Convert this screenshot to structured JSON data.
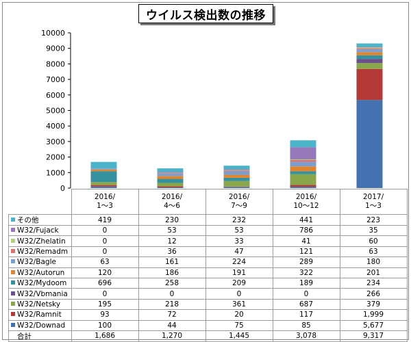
{
  "title": "ウイルス検出数の推移",
  "colors": {
    "W32/Downad": "#4472b0",
    "W32/Ramnit": "#b33a37",
    "W32/Netsky": "#89a64a",
    "W32/Vbmania": "#6c4f8c",
    "W32/Mydoom": "#34929e",
    "W32/Autorun": "#e0852f",
    "W32/Bagle": "#7a9fd0",
    "W32/Remadm": "#d7726f",
    "W32/Zhelatin": "#b2cc80",
    "W32/Fujack": "#9579b8",
    "その他": "#4bb4c9"
  },
  "chart_data": {
    "type": "bar",
    "stacked": true,
    "title": "ウイルス検出数の推移",
    "categories": [
      "2016/\n1～3",
      "2016/\n4～6",
      "2016/\n7～9",
      "2016/\n10～12",
      "2017/\n1～3"
    ],
    "category_lines": [
      [
        "2016/",
        "1～3"
      ],
      [
        "2016/",
        "4～6"
      ],
      [
        "2016/",
        "7～9"
      ],
      [
        "2016/",
        "10～12"
      ],
      [
        "2017/",
        "1～3"
      ]
    ],
    "yticks": [
      "0",
      "1000",
      "2000",
      "3000",
      "4000",
      "5000",
      "6000",
      "7000",
      "8000",
      "9000",
      "10000"
    ],
    "ylim": [
      0,
      10000
    ],
    "series": [
      {
        "name": "W32/Downad",
        "values": [
          100,
          44,
          75,
          85,
          5677
        ],
        "labels": [
          "100",
          "44",
          "75",
          "85",
          "5,677"
        ]
      },
      {
        "name": "W32/Ramnit",
        "values": [
          93,
          72,
          20,
          117,
          1999
        ],
        "labels": [
          "93",
          "72",
          "20",
          "117",
          "1,999"
        ]
      },
      {
        "name": "W32/Netsky",
        "values": [
          195,
          218,
          361,
          687,
          379
        ],
        "labels": [
          "195",
          "218",
          "361",
          "687",
          "379"
        ]
      },
      {
        "name": "W32/Vbmania",
        "values": [
          0,
          0,
          0,
          0,
          266
        ],
        "labels": [
          "0",
          "0",
          "0",
          "0",
          "266"
        ]
      },
      {
        "name": "W32/Mydoom",
        "values": [
          696,
          258,
          209,
          189,
          234
        ],
        "labels": [
          "696",
          "258",
          "209",
          "189",
          "234"
        ]
      },
      {
        "name": "W32/Autorun",
        "values": [
          120,
          186,
          191,
          322,
          201
        ],
        "labels": [
          "120",
          "186",
          "191",
          "322",
          "201"
        ]
      },
      {
        "name": "W32/Bagle",
        "values": [
          63,
          161,
          224,
          289,
          180
        ],
        "labels": [
          "63",
          "161",
          "224",
          "289",
          "180"
        ]
      },
      {
        "name": "W32/Remadm",
        "values": [
          0,
          36,
          47,
          121,
          63
        ],
        "labels": [
          "0",
          "36",
          "47",
          "121",
          "63"
        ]
      },
      {
        "name": "W32/Zhelatin",
        "values": [
          0,
          12,
          33,
          41,
          60
        ],
        "labels": [
          "0",
          "12",
          "33",
          "41",
          "60"
        ]
      },
      {
        "name": "W32/Fujack",
        "values": [
          0,
          53,
          53,
          786,
          35
        ],
        "labels": [
          "0",
          "53",
          "53",
          "786",
          "35"
        ]
      },
      {
        "name": "その他",
        "values": [
          419,
          230,
          232,
          441,
          223
        ],
        "labels": [
          "419",
          "230",
          "232",
          "441",
          "223"
        ]
      }
    ],
    "totals": {
      "name": "合計",
      "values": [
        1686,
        1270,
        1445,
        3078,
        9317
      ],
      "labels": [
        "1,686",
        "1,270",
        "1,445",
        "3,078",
        "9,317"
      ]
    },
    "grid": false,
    "legend": "table-below"
  }
}
